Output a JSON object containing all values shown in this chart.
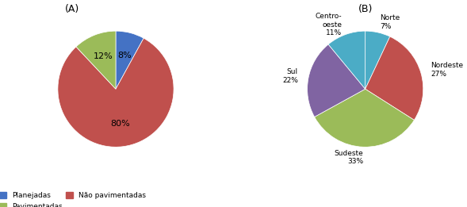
{
  "chart_A": {
    "labels": [
      "Planejadas",
      "Não pavimentadas",
      "Pavimentadas"
    ],
    "values": [
      8,
      80,
      12
    ],
    "colors": [
      "#4472c4",
      "#c0504d",
      "#9bbb59"
    ],
    "pct_labels": [
      "8%",
      "80%",
      "12%"
    ],
    "title": "(A)",
    "startangle": 90,
    "legend_labels": [
      "Planejadas",
      "Não pavimentadas",
      "Pavimentadas"
    ]
  },
  "chart_B": {
    "labels": [
      "Norte\n7%",
      "Nordeste\n27%",
      "Sudeste\n33%",
      "Sul\n22%",
      "Centro-\noeste\n11%"
    ],
    "values": [
      7,
      27,
      33,
      22,
      11
    ],
    "colors": [
      "#4bacc6",
      "#c0504d",
      "#9bbb59",
      "#8064a2",
      "#4bacc6"
    ],
    "colors_b": [
      "#4bacc6",
      "#c0504d",
      "#9bbb59",
      "#8064a2",
      "#4bacc6"
    ],
    "title": "(B)",
    "startangle": 90
  },
  "bg_color": "#ffffff",
  "font_size": 8,
  "title_font_size": 9
}
